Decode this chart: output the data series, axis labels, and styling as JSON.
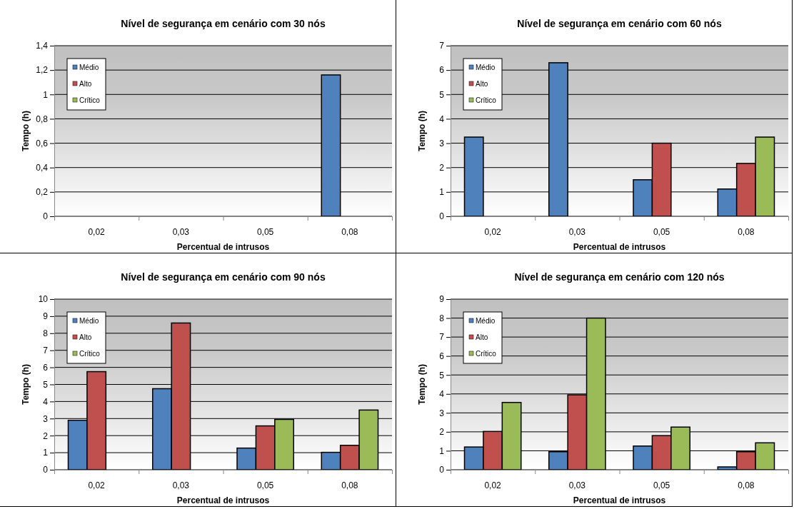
{
  "chart_data": [
    {
      "type": "bar",
      "title": "Nível de segurança em cenário com 30 nós",
      "xlabel": "Percentual de intrusos",
      "ylabel": "Tempo (h)",
      "categories": [
        "0,02",
        "0,03",
        "0,05",
        "0,08"
      ],
      "series": [
        {
          "name": "Médio",
          "color": "#4f81bd",
          "values": [
            null,
            null,
            null,
            1.16
          ]
        },
        {
          "name": "Alto",
          "color": "#c0504d",
          "values": [
            null,
            null,
            null,
            null
          ]
        },
        {
          "name": "Crítico",
          "color": "#9bbb59",
          "values": [
            null,
            null,
            null,
            null
          ]
        }
      ],
      "ylim": [
        0,
        1.4
      ],
      "yticks": [
        0,
        {
          "value": 0.2,
          "label": "0,2"
        },
        {
          "value": 0.4,
          "label": "0,4"
        },
        {
          "value": 0.6,
          "label": "0,6"
        },
        {
          "value": 0.8,
          "label": "0,8"
        },
        1,
        {
          "value": 1.2,
          "label": "1,2"
        },
        {
          "value": 1.4,
          "label": "1,4"
        }
      ],
      "grid": "y",
      "legend": "top left"
    },
    {
      "type": "bar",
      "title": "Nível de segurança em cenário com 60 nós",
      "xlabel": "Percentual de intrusos",
      "ylabel": "Tempo (h)",
      "categories": [
        "0,02",
        "0,03",
        "0,05",
        "0,08"
      ],
      "series": [
        {
          "name": "Médio",
          "color": "#4f81bd",
          "values": [
            3.25,
            6.3,
            1.5,
            1.12
          ]
        },
        {
          "name": "Alto",
          "color": "#c0504d",
          "values": [
            null,
            null,
            3.0,
            2.17
          ]
        },
        {
          "name": "Crítico",
          "color": "#9bbb59",
          "values": [
            null,
            null,
            null,
            3.25
          ]
        }
      ],
      "ylim": [
        0,
        7
      ],
      "yticks": [
        0,
        1,
        2,
        3,
        4,
        5,
        6,
        7
      ],
      "grid": "y",
      "legend": "top left"
    },
    {
      "type": "bar",
      "title": "Nível de segurança em cenário com 90 nós",
      "xlabel": "Percentual de intrusos",
      "ylabel": "Tempo (h)",
      "categories": [
        "0,02",
        "0,03",
        "0,05",
        "0,08"
      ],
      "series": [
        {
          "name": "Médio",
          "color": "#4f81bd",
          "values": [
            2.9,
            4.75,
            1.27,
            1.02
          ]
        },
        {
          "name": "Alto",
          "color": "#c0504d",
          "values": [
            5.75,
            8.6,
            2.57,
            1.43
          ]
        },
        {
          "name": "Crítico",
          "color": "#9bbb59",
          "values": [
            null,
            null,
            2.95,
            3.5
          ]
        }
      ],
      "ylim": [
        0,
        10
      ],
      "yticks": [
        0,
        1,
        2,
        3,
        4,
        5,
        6,
        7,
        8,
        9,
        10
      ],
      "grid": "y",
      "legend": "top left"
    },
    {
      "type": "bar",
      "title": "Nível de segurança em cenário com 120 nós",
      "xlabel": "Percentual de intrusos",
      "ylabel": "Tempo (h)",
      "categories": [
        "0,02",
        "0,03",
        "0,05",
        "0,08"
      ],
      "series": [
        {
          "name": "Médio",
          "color": "#4f81bd",
          "values": [
            1.2,
            0.95,
            1.25,
            0.15
          ]
        },
        {
          "name": "Alto",
          "color": "#c0504d",
          "values": [
            2.02,
            3.95,
            1.8,
            0.95
          ]
        },
        {
          "name": "Crítico",
          "color": "#9bbb59",
          "values": [
            3.55,
            8.0,
            2.25,
            1.42
          ]
        }
      ],
      "ylim": [
        0,
        9
      ],
      "yticks": [
        0,
        1,
        2,
        3,
        4,
        5,
        6,
        7,
        8,
        9
      ],
      "grid": "y",
      "legend": "top left"
    }
  ]
}
